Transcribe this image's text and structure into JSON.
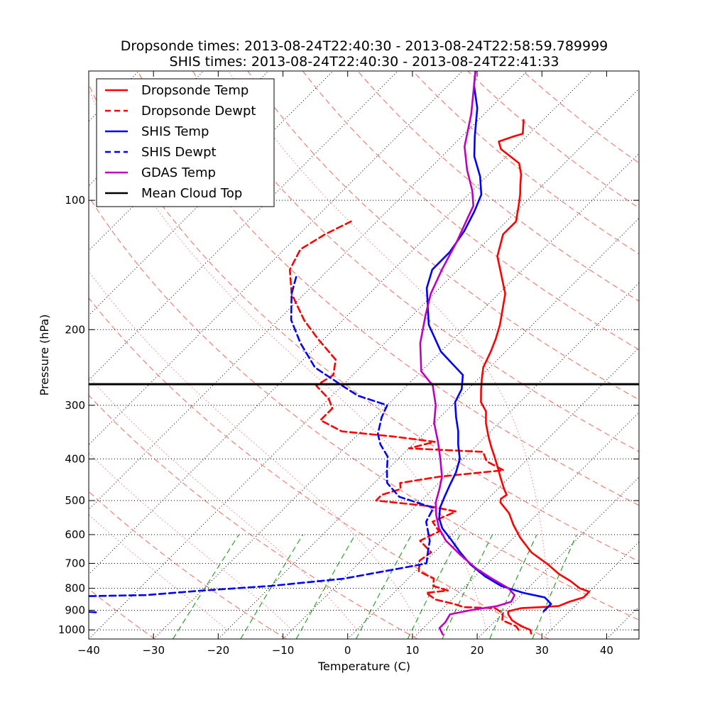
{
  "chart_data": {
    "type": "line",
    "title_line1": "Dropsonde times: 2013-08-24T22:40:30 - 2013-08-24T22:58:59.789999",
    "title_line2": "SHIS times: 2013-08-24T22:40:30 - 2013-08-24T22:41:33",
    "xlabel": "Temperature (C)",
    "ylabel": "Pressure (hPa)",
    "xlim": [
      -40,
      45
    ],
    "ylim_hpa": [
      1050,
      50
    ],
    "y_scale": "log",
    "skew": "temperature isotherms skewed 45 degrees",
    "x_ticks": [
      -40,
      -30,
      -20,
      -10,
      0,
      10,
      20,
      30,
      40
    ],
    "x_tick_labels": [
      "−40",
      "−30",
      "−20",
      "−10",
      "0",
      "10",
      "20",
      "30",
      "40"
    ],
    "y_ticks": [
      100,
      200,
      300,
      400,
      500,
      600,
      700,
      800,
      900,
      1000
    ],
    "y_tick_labels": [
      "100",
      "200",
      "300",
      "400",
      "500",
      "600",
      "700",
      "800",
      "900",
      "1000"
    ],
    "grid": true,
    "legend_position": "top-left",
    "background_lines": {
      "isotherms_c": [
        -120,
        -110,
        -100,
        -90,
        -80,
        -70,
        -60,
        -50,
        -40,
        -30,
        -20,
        -10,
        0,
        10,
        20,
        30,
        40
      ],
      "dry_adiabats_theta_k": [
        220,
        240,
        260,
        280,
        300,
        320,
        340,
        360,
        380,
        400,
        420,
        440,
        460,
        480,
        500
      ],
      "moist_adiabats_start_c": [
        -20,
        -10,
        0,
        10,
        20,
        30
      ],
      "mixing_ratio_gkg": [
        0.4,
        1,
        2,
        4,
        7,
        10,
        16,
        24
      ]
    },
    "mean_cloud_top_hpa": 268,
    "series": [
      {
        "name": "Dropsonde Temp",
        "color": "#ff0000",
        "dash": "solid",
        "points": [
          [
            27.5,
            1020
          ],
          [
            26.8,
            1000
          ],
          [
            24.8,
            980
          ],
          [
            22.5,
            950
          ],
          [
            21.0,
            920
          ],
          [
            20.5,
            905
          ],
          [
            22.0,
            890
          ],
          [
            25.0,
            885
          ],
          [
            27.5,
            880
          ],
          [
            28.5,
            860
          ],
          [
            30.0,
            840
          ],
          [
            30.0,
            815
          ],
          [
            28.0,
            800
          ],
          [
            25.5,
            770
          ],
          [
            22.5,
            740
          ],
          [
            19.5,
            705
          ],
          [
            15.0,
            660
          ],
          [
            11.0,
            610
          ],
          [
            8.0,
            570
          ],
          [
            5.5,
            535
          ],
          [
            2.5,
            505
          ],
          [
            2.0,
            495
          ],
          [
            2.3,
            485
          ],
          [
            1.0,
            470
          ],
          [
            -1.5,
            440
          ],
          [
            -3.2,
            420
          ],
          [
            -5.5,
            395
          ],
          [
            -7.5,
            375
          ],
          [
            -9.5,
            355
          ],
          [
            -12.0,
            330
          ],
          [
            -13.8,
            310
          ],
          [
            -16.0,
            295
          ],
          [
            -18.0,
            275
          ],
          [
            -19.5,
            260
          ],
          [
            -21.0,
            245
          ],
          [
            -22.3,
            225
          ],
          [
            -23.5,
            210
          ],
          [
            -25.0,
            195
          ],
          [
            -29.0,
            165
          ],
          [
            -33.5,
            145
          ],
          [
            -36.0,
            135
          ],
          [
            -38.5,
            120
          ],
          [
            -38.5,
            112
          ],
          [
            -40.5,
            103
          ],
          [
            -42.0,
            97
          ],
          [
            -43.5,
            92
          ],
          [
            -45.0,
            87
          ],
          [
            -47.0,
            82
          ],
          [
            -52.0,
            76
          ],
          [
            -53.5,
            73
          ],
          [
            -52.0,
            71
          ],
          [
            -51.0,
            70
          ],
          [
            -53.0,
            65
          ]
        ]
      },
      {
        "name": "Dropsonde Dewpt",
        "color": "#ff0000",
        "dash": "dashed",
        "points": [
          [
            25.0,
            1000
          ],
          [
            24.0,
            980
          ],
          [
            21.0,
            950
          ],
          [
            20.0,
            915
          ],
          [
            18.0,
            890
          ],
          [
            13.0,
            885
          ],
          [
            11.0,
            870
          ],
          [
            7.5,
            850
          ],
          [
            5.0,
            820
          ],
          [
            8.0,
            810
          ],
          [
            5.0,
            790
          ],
          [
            4.0,
            760
          ],
          [
            0.5,
            730
          ],
          [
            -1.0,
            690
          ],
          [
            -0.5,
            660
          ],
          [
            -4.0,
            620
          ],
          [
            -2.5,
            590
          ],
          [
            -5.0,
            560
          ],
          [
            -3.0,
            530
          ],
          [
            -8.0,
            515
          ],
          [
            -17.0,
            500
          ],
          [
            -17.0,
            485
          ],
          [
            -15.0,
            470
          ],
          [
            -16.0,
            455
          ],
          [
            -11.0,
            440
          ],
          [
            -2.0,
            425
          ],
          [
            -6.0,
            405
          ],
          [
            -8.0,
            385
          ],
          [
            -20.0,
            378
          ],
          [
            -17.0,
            365
          ],
          [
            -24.0,
            355
          ],
          [
            -33.0,
            345
          ],
          [
            -38.0,
            325
          ],
          [
            -38.0,
            305
          ],
          [
            -40.0,
            290
          ],
          [
            -44.0,
            270
          ],
          [
            -43.0,
            255
          ],
          [
            -45.0,
            235
          ],
          [
            -51.0,
            210
          ],
          [
            -56.0,
            190
          ],
          [
            -62.0,
            165
          ],
          [
            -66.0,
            145
          ],
          [
            -67.5,
            130
          ],
          [
            -66.0,
            120
          ],
          [
            -64.0,
            112
          ]
        ]
      },
      {
        "name": "SHIS Temp",
        "color": "#0000ff",
        "dash": "solid",
        "points": [
          [
            26.0,
            905
          ],
          [
            26.0,
            870
          ],
          [
            24.0,
            840
          ],
          [
            20.0,
            820
          ],
          [
            15.5,
            790
          ],
          [
            11.5,
            750
          ],
          [
            7.5,
            705
          ],
          [
            4.0,
            660
          ],
          [
            0.5,
            615
          ],
          [
            -2.5,
            580
          ],
          [
            -4.5,
            550
          ],
          [
            -6.0,
            520
          ],
          [
            -7.0,
            490
          ],
          [
            -8.0,
            460
          ],
          [
            -9.0,
            430
          ],
          [
            -10.5,
            400
          ],
          [
            -13.0,
            370
          ],
          [
            -15.0,
            345
          ],
          [
            -17.5,
            320
          ],
          [
            -20.0,
            295
          ],
          [
            -21.0,
            275
          ],
          [
            -23.0,
            255
          ],
          [
            -30.0,
            225
          ],
          [
            -36.0,
            195
          ],
          [
            -42.0,
            160
          ],
          [
            -44.0,
            145
          ],
          [
            -44.0,
            132
          ],
          [
            -45.0,
            118
          ],
          [
            -46.5,
            106
          ],
          [
            -48.0,
            97
          ],
          [
            -51.0,
            88
          ],
          [
            -55.0,
            79
          ],
          [
            -58.0,
            71
          ],
          [
            -62.0,
            61
          ],
          [
            -66.0,
            54
          ],
          [
            -68.0,
            50
          ]
        ]
      },
      {
        "name": "SHIS Dewpt",
        "color": "#0000ff",
        "dash": "dashed",
        "points": [
          [
            -43.0,
            910
          ],
          [
            -53.0,
            890
          ],
          [
            -70.0,
            885
          ],
          [
            -60.0,
            865
          ],
          [
            -57.0,
            860
          ],
          [
            -55.0,
            850
          ],
          [
            -58.0,
            840
          ],
          [
            -38.0,
            830
          ],
          [
            -30.0,
            810
          ],
          [
            -20.0,
            790
          ],
          [
            -10.0,
            760
          ],
          [
            -3.0,
            720
          ],
          [
            0.5,
            700
          ],
          [
            -1.0,
            660
          ],
          [
            -2.5,
            620
          ],
          [
            -6.0,
            560
          ],
          [
            -7.0,
            520
          ],
          [
            -14.0,
            490
          ],
          [
            -18.0,
            455
          ],
          [
            -20.0,
            425
          ],
          [
            -22.0,
            395
          ],
          [
            -25.0,
            370
          ],
          [
            -27.0,
            350
          ],
          [
            -29.0,
            320
          ],
          [
            -30.0,
            300
          ],
          [
            -36.0,
            285
          ],
          [
            -40.0,
            270
          ],
          [
            -47.0,
            245
          ],
          [
            -53.0,
            215
          ],
          [
            -58.0,
            190
          ],
          [
            -62.0,
            165
          ],
          [
            -64.0,
            150
          ]
        ]
      },
      {
        "name": "GDAS Temp",
        "color": "#bf00bf",
        "dash": "solid",
        "points": [
          [
            14.0,
            1025
          ],
          [
            12.5,
            990
          ],
          [
            12.5,
            960
          ],
          [
            12.0,
            920
          ],
          [
            14.5,
            900
          ],
          [
            18.0,
            880
          ],
          [
            19.5,
            860
          ],
          [
            19.0,
            830
          ],
          [
            17.0,
            800
          ],
          [
            13.0,
            760
          ],
          [
            9.0,
            720
          ],
          [
            4.5,
            670
          ],
          [
            0.0,
            620
          ],
          [
            -3.0,
            580
          ],
          [
            -5.5,
            540
          ],
          [
            -7.5,
            505
          ],
          [
            -9.0,
            470
          ],
          [
            -10.5,
            440
          ],
          [
            -13.5,
            400
          ],
          [
            -16.5,
            365
          ],
          [
            -20.0,
            330
          ],
          [
            -22.5,
            300
          ],
          [
            -26.0,
            270
          ],
          [
            -30.0,
            250
          ],
          [
            -34.5,
            215
          ],
          [
            -38.0,
            185
          ],
          [
            -40.5,
            165
          ],
          [
            -42.5,
            145
          ],
          [
            -44.5,
            125
          ],
          [
            -46.5,
            110
          ],
          [
            -47.5,
            103
          ],
          [
            -50.0,
            95
          ],
          [
            -54.0,
            85
          ],
          [
            -58.0,
            75
          ],
          [
            -62.0,
            63
          ],
          [
            -68.0,
            50
          ]
        ]
      },
      {
        "name": "Mean Cloud Top",
        "color": "#000000",
        "dash": "solid",
        "points": []
      }
    ]
  }
}
